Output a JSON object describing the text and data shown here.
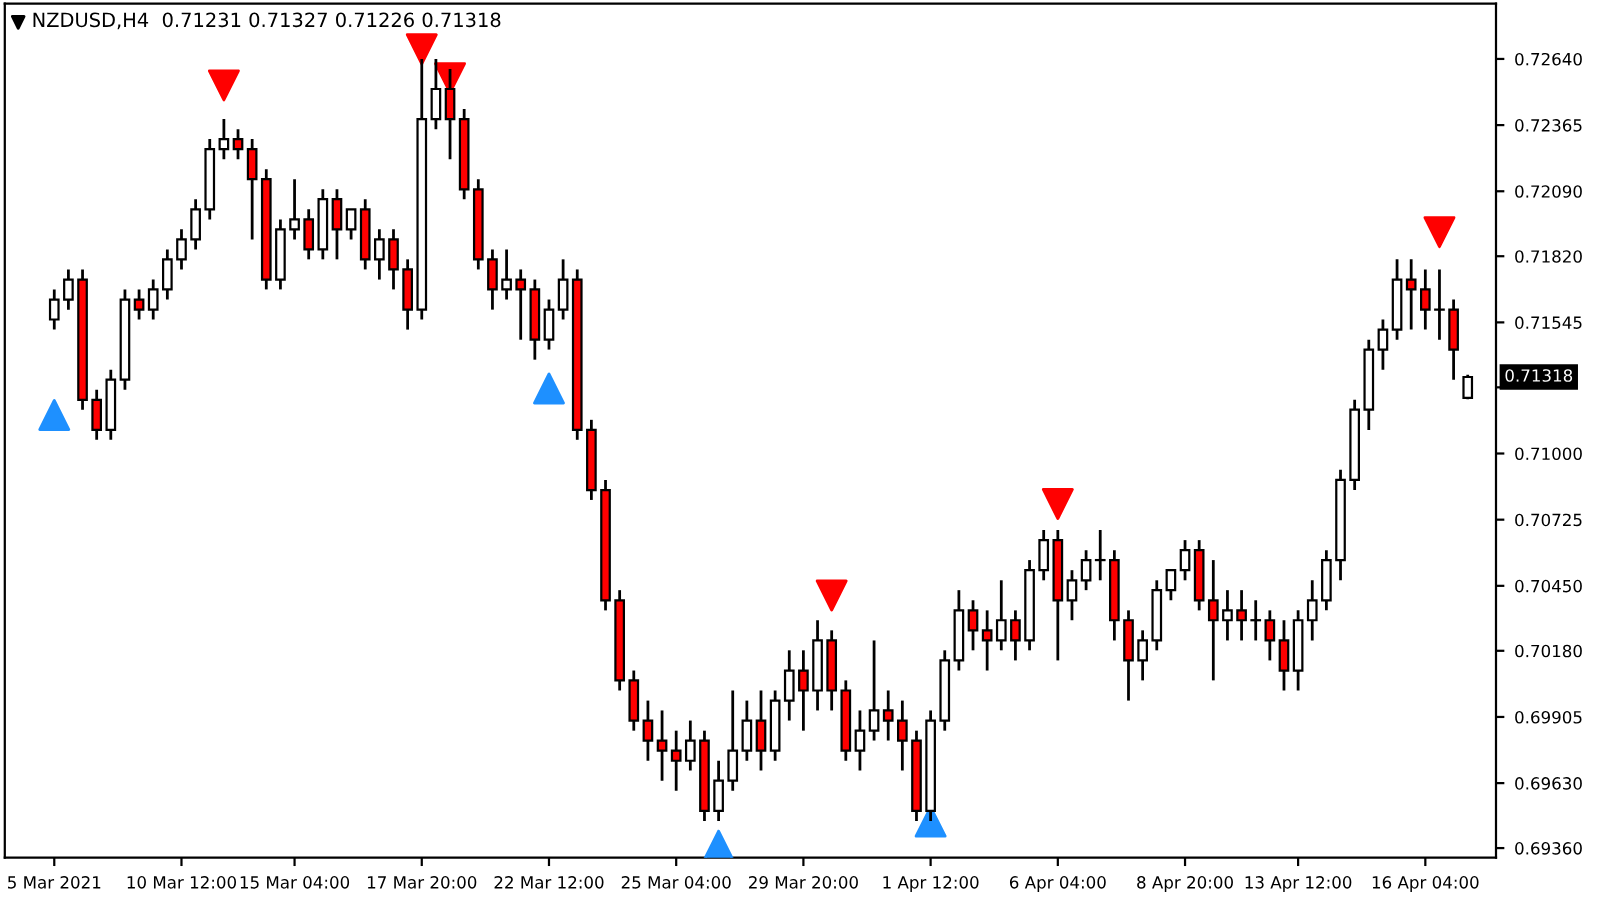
{
  "chart_data": {
    "type": "candlestick",
    "title": "NZDUSD,H4  0.71231 0.71327 0.71226 0.71318",
    "categories": [
      "5 Mar 2021",
      null,
      null,
      null,
      null,
      null,
      null,
      null,
      null,
      "10 Mar 12:00",
      null,
      null,
      null,
      null,
      null,
      null,
      null,
      "15 Mar 04:00",
      null,
      null,
      null,
      null,
      null,
      null,
      null,
      null,
      "17 Mar 20:00",
      null,
      null,
      null,
      null,
      null,
      null,
      null,
      null,
      "22 Mar 12:00",
      null,
      null,
      null,
      null,
      null,
      null,
      null,
      null,
      "25 Mar 04:00",
      null,
      null,
      null,
      null,
      null,
      null,
      null,
      null,
      "29 Mar 20:00",
      null,
      null,
      null,
      null,
      null,
      null,
      null,
      null,
      "1 Apr 12:00",
      null,
      null,
      null,
      null,
      null,
      null,
      null,
      null,
      "6 Apr 04:00",
      null,
      null,
      null,
      null,
      null,
      null,
      null,
      null,
      "8 Apr 20:00",
      null,
      null,
      null,
      null,
      null,
      null,
      null,
      "13 Apr 12:00",
      null,
      null,
      null,
      null,
      null,
      null,
      null,
      null,
      "16 Apr 04:00",
      null,
      null,
      null
    ],
    "ohlc": [
      [
        0.71557,
        0.71682,
        0.71515,
        0.7164
      ],
      [
        0.7164,
        0.71765,
        0.71598,
        0.71723
      ],
      [
        0.71723,
        0.71765,
        0.71182,
        0.71223
      ],
      [
        0.71223,
        0.71265,
        0.71057,
        0.71098
      ],
      [
        0.71098,
        0.71348,
        0.71057,
        0.71307
      ],
      [
        0.71307,
        0.71682,
        0.71265,
        0.7164
      ],
      [
        0.7164,
        0.71682,
        0.71557,
        0.71598
      ],
      [
        0.71598,
        0.71723,
        0.71557,
        0.71682
      ],
      [
        0.71682,
        0.71848,
        0.7164,
        0.71807
      ],
      [
        0.71807,
        0.71932,
        0.71765,
        0.7189
      ],
      [
        0.7189,
        0.72057,
        0.71848,
        0.72015
      ],
      [
        0.72015,
        0.72307,
        0.71973,
        0.72265
      ],
      [
        0.72265,
        0.7239,
        0.72223,
        0.72307
      ],
      [
        0.72307,
        0.72348,
        0.72223,
        0.72265
      ],
      [
        0.72265,
        0.72307,
        0.7189,
        0.7214
      ],
      [
        0.7214,
        0.72182,
        0.71682,
        0.71723
      ],
      [
        0.71723,
        0.71973,
        0.71682,
        0.71932
      ],
      [
        0.71932,
        0.7214,
        0.7189,
        0.71973
      ],
      [
        0.71973,
        0.72015,
        0.71807,
        0.71848
      ],
      [
        0.71848,
        0.72098,
        0.71807,
        0.72057
      ],
      [
        0.72057,
        0.72098,
        0.71807,
        0.71932
      ],
      [
        0.71932,
        0.72015,
        0.7189,
        0.72015
      ],
      [
        0.72015,
        0.72057,
        0.71765,
        0.71807
      ],
      [
        0.71807,
        0.71932,
        0.71723,
        0.7189
      ],
      [
        0.7189,
        0.71932,
        0.71682,
        0.71765
      ],
      [
        0.71765,
        0.71807,
        0.71515,
        0.71598
      ],
      [
        0.71598,
        0.7264,
        0.71557,
        0.7239
      ],
      [
        0.7239,
        0.7264,
        0.72348,
        0.72515
      ],
      [
        0.72515,
        0.72598,
        0.72223,
        0.7239
      ],
      [
        0.7239,
        0.72432,
        0.72057,
        0.72098
      ],
      [
        0.72098,
        0.7214,
        0.71765,
        0.71807
      ],
      [
        0.71807,
        0.71848,
        0.71598,
        0.71682
      ],
      [
        0.71682,
        0.71848,
        0.7164,
        0.71723
      ],
      [
        0.71723,
        0.71765,
        0.71473,
        0.71682
      ],
      [
        0.71682,
        0.71723,
        0.7139,
        0.71473
      ],
      [
        0.71473,
        0.7164,
        0.71432,
        0.71598
      ],
      [
        0.71598,
        0.71807,
        0.71557,
        0.71723
      ],
      [
        0.71723,
        0.71765,
        0.71057,
        0.71098
      ],
      [
        0.71098,
        0.7114,
        0.70807,
        0.70848
      ],
      [
        0.70848,
        0.7089,
        0.70348,
        0.7039
      ],
      [
        0.7039,
        0.70432,
        0.70015,
        0.70057
      ],
      [
        0.70057,
        0.70098,
        0.69848,
        0.6989
      ],
      [
        0.6989,
        0.69973,
        0.69723,
        0.69807
      ],
      [
        0.69807,
        0.69932,
        0.6964,
        0.69765
      ],
      [
        0.69765,
        0.69848,
        0.69598,
        0.69723
      ],
      [
        0.69723,
        0.6989,
        0.69682,
        0.69807
      ],
      [
        0.69807,
        0.69848,
        0.69473,
        0.69515
      ],
      [
        0.69515,
        0.69723,
        0.69473,
        0.6964
      ],
      [
        0.6964,
        0.70015,
        0.69598,
        0.69765
      ],
      [
        0.69765,
        0.69973,
        0.69723,
        0.6989
      ],
      [
        0.6989,
        0.70015,
        0.69682,
        0.69765
      ],
      [
        0.69765,
        0.70015,
        0.69723,
        0.69973
      ],
      [
        0.69973,
        0.70182,
        0.6989,
        0.70098
      ],
      [
        0.70098,
        0.70182,
        0.69848,
        0.70015
      ],
      [
        0.70015,
        0.70307,
        0.69932,
        0.70223
      ],
      [
        0.70223,
        0.70265,
        0.69932,
        0.70015
      ],
      [
        0.70015,
        0.70057,
        0.69723,
        0.69765
      ],
      [
        0.69765,
        0.69932,
        0.69682,
        0.69848
      ],
      [
        0.69848,
        0.70223,
        0.69807,
        0.69932
      ],
      [
        0.69932,
        0.70015,
        0.69807,
        0.6989
      ],
      [
        0.6989,
        0.69973,
        0.69682,
        0.69807
      ],
      [
        0.69807,
        0.69848,
        0.69473,
        0.69515
      ],
      [
        0.69515,
        0.69932,
        0.69473,
        0.6989
      ],
      [
        0.6989,
        0.70182,
        0.69848,
        0.7014
      ],
      [
        0.7014,
        0.70432,
        0.70098,
        0.70348
      ],
      [
        0.70348,
        0.7039,
        0.70182,
        0.70265
      ],
      [
        0.70265,
        0.70348,
        0.70098,
        0.70223
      ],
      [
        0.70223,
        0.70473,
        0.70182,
        0.70307
      ],
      [
        0.70307,
        0.70348,
        0.7014,
        0.70223
      ],
      [
        0.70223,
        0.70557,
        0.70182,
        0.70515
      ],
      [
        0.70515,
        0.70682,
        0.70473,
        0.7064
      ],
      [
        0.7064,
        0.70682,
        0.7014,
        0.7039
      ],
      [
        0.7039,
        0.70515,
        0.70307,
        0.70473
      ],
      [
        0.70473,
        0.70598,
        0.70432,
        0.70557
      ],
      [
        0.70557,
        0.70682,
        0.70473,
        0.70557
      ],
      [
        0.70557,
        0.70598,
        0.70223,
        0.70307
      ],
      [
        0.70307,
        0.70348,
        0.69973,
        0.7014
      ],
      [
        0.7014,
        0.70265,
        0.70057,
        0.70223
      ],
      [
        0.70223,
        0.70473,
        0.70182,
        0.70432
      ],
      [
        0.70432,
        0.70515,
        0.7039,
        0.70515
      ],
      [
        0.70515,
        0.7064,
        0.70473,
        0.70598
      ],
      [
        0.70598,
        0.7064,
        0.70348,
        0.7039
      ],
      [
        0.7039,
        0.70557,
        0.70057,
        0.70307
      ],
      [
        0.70307,
        0.70432,
        0.70223,
        0.70348
      ],
      [
        0.70348,
        0.70432,
        0.70223,
        0.70307
      ],
      [
        0.70307,
        0.7039,
        0.70223,
        0.70307
      ],
      [
        0.70307,
        0.70348,
        0.7014,
        0.70223
      ],
      [
        0.70223,
        0.70307,
        0.70015,
        0.70098
      ],
      [
        0.70098,
        0.70348,
        0.70015,
        0.70307
      ],
      [
        0.70307,
        0.70473,
        0.70223,
        0.7039
      ],
      [
        0.7039,
        0.70598,
        0.70348,
        0.70557
      ],
      [
        0.70557,
        0.70932,
        0.70473,
        0.7089
      ],
      [
        0.7089,
        0.71223,
        0.70848,
        0.71182
      ],
      [
        0.71182,
        0.71473,
        0.71098,
        0.71432
      ],
      [
        0.71432,
        0.71557,
        0.71348,
        0.71515
      ],
      [
        0.71515,
        0.71807,
        0.71473,
        0.71723
      ],
      [
        0.71723,
        0.71807,
        0.71515,
        0.71682
      ],
      [
        0.71682,
        0.71765,
        0.71515,
        0.71598
      ],
      [
        0.71598,
        0.71765,
        0.71473,
        0.71598
      ],
      [
        0.71598,
        0.7164,
        0.71307,
        0.71432
      ],
      [
        0.71231,
        0.71327,
        0.71226,
        0.71318
      ]
    ],
    "colors": [
      "#ffffff",
      "#ffffff",
      "#ff0000",
      "#ff0000",
      "#ffffff",
      "#ffffff",
      "#ff0000",
      "#ffffff",
      "#ffffff",
      "#ffffff",
      "#ffffff",
      "#ffffff",
      "#ffffff",
      "#ff0000",
      "#ff0000",
      "#ff0000",
      "#ffffff",
      "#ffffff",
      "#ff0000",
      "#ffffff",
      "#ff0000",
      "#ffffff",
      "#ff0000",
      "#ffffff",
      "#ff0000",
      "#ff0000",
      "#ffffff",
      "#ffffff",
      "#ff0000",
      "#ff0000",
      "#ff0000",
      "#ff0000",
      "#ffffff",
      "#ff0000",
      "#ff0000",
      "#ffffff",
      "#ffffff",
      "#ff0000",
      "#ff0000",
      "#ff0000",
      "#ff0000",
      "#ff0000",
      "#ff0000",
      "#ff0000",
      "#ff0000",
      "#ffffff",
      "#ff0000",
      "#ffffff",
      "#ffffff",
      "#ffffff",
      "#ff0000",
      "#ffffff",
      "#ffffff",
      "#ff0000",
      "#ffffff",
      "#ff0000",
      "#ff0000",
      "#ffffff",
      "#ffffff",
      "#ff0000",
      "#ff0000",
      "#ff0000",
      "#ffffff",
      "#ffffff",
      "#ffffff",
      "#ff0000",
      "#ff0000",
      "#ffffff",
      "#ff0000",
      "#ffffff",
      "#ffffff",
      "#ff0000",
      "#ffffff",
      "#ffffff",
      "#ffffff",
      "#ff0000",
      "#ff0000",
      "#ffffff",
      "#ffffff",
      "#ffffff",
      "#ffffff",
      "#ff0000",
      "#ff0000",
      "#ffffff",
      "#ff0000",
      "#ffffff",
      "#ff0000",
      "#ff0000",
      "#ffffff",
      "#ffffff",
      "#ffffff",
      "#ffffff",
      "#ffffff",
      "#ffffff",
      "#ffffff",
      "#ffffff",
      "#ff0000",
      "#ff0000",
      "#ffffff",
      "#ff0000",
      "#ffffff"
    ],
    "series": [
      {
        "type": "scatter",
        "color": "#ff0000",
        "marker": "triangle_down",
        "values": [
          null,
          null,
          null,
          null,
          null,
          null,
          null,
          null,
          null,
          null,
          null,
          null,
          0.7253,
          null,
          null,
          null,
          null,
          null,
          null,
          null,
          null,
          null,
          null,
          null,
          null,
          null,
          0.7268,
          null,
          0.7256,
          null,
          null,
          null,
          null,
          null,
          null,
          null,
          null,
          null,
          null,
          null,
          null,
          null,
          null,
          null,
          null,
          null,
          null,
          null,
          null,
          null,
          null,
          null,
          null,
          null,
          null,
          0.7041,
          null,
          null,
          null,
          null,
          null,
          null,
          null,
          null,
          null,
          null,
          null,
          null,
          null,
          null,
          null,
          0.7079,
          null,
          null,
          null,
          null,
          null,
          null,
          null,
          null,
          null,
          null,
          null,
          null,
          null,
          null,
          null,
          null,
          null,
          null,
          null,
          null,
          null,
          null,
          null,
          null,
          null,
          null,
          0.7192,
          null,
          null
        ]
      },
      {
        "type": "scatter",
        "color": "#1e90ff",
        "marker": "triangle",
        "values": [
          0.7116,
          null,
          null,
          null,
          null,
          null,
          null,
          null,
          null,
          null,
          null,
          null,
          null,
          null,
          null,
          null,
          null,
          null,
          null,
          null,
          null,
          null,
          null,
          null,
          null,
          null,
          null,
          null,
          null,
          null,
          null,
          null,
          null,
          null,
          null,
          0.7127,
          null,
          null,
          null,
          null,
          null,
          null,
          null,
          null,
          null,
          null,
          null,
          0.6937,
          null,
          null,
          null,
          null,
          null,
          null,
          null,
          null,
          null,
          null,
          null,
          null,
          null,
          null,
          0.6947,
          null,
          null,
          null,
          null,
          null,
          null,
          null,
          null,
          null,
          null,
          null,
          null,
          null,
          null,
          null,
          null,
          null,
          null,
          null,
          null,
          null,
          null,
          null,
          null,
          null,
          null,
          null,
          null,
          null,
          null,
          null,
          null,
          null,
          null,
          null,
          null,
          null,
          null
        ]
      }
    ],
    "ylim": [
      0.6932,
      0.7287
    ],
    "yticks": [
      {
        "value": 0.6936,
        "label": "0.69360"
      },
      {
        "value": 0.6963,
        "label": "0.69630"
      },
      {
        "value": 0.69905,
        "label": "0.69905"
      },
      {
        "value": 0.7018,
        "label": "0.70180"
      },
      {
        "value": 0.7045,
        "label": "0.70450"
      },
      {
        "value": 0.70725,
        "label": "0.70725"
      },
      {
        "value": 0.71,
        "label": "0.71000"
      },
      {
        "value": 0.71275,
        "label": null
      },
      {
        "value": 0.71545,
        "label": "0.71545"
      },
      {
        "value": 0.7182,
        "label": "0.71820"
      },
      {
        "value": 0.7209,
        "label": "0.72090"
      },
      {
        "value": 0.72365,
        "label": "0.72365"
      },
      {
        "value": 0.7264,
        "label": "0.72640"
      }
    ],
    "annotations": [
      "0.71318"
    ],
    "grid": false,
    "legend": false
  }
}
